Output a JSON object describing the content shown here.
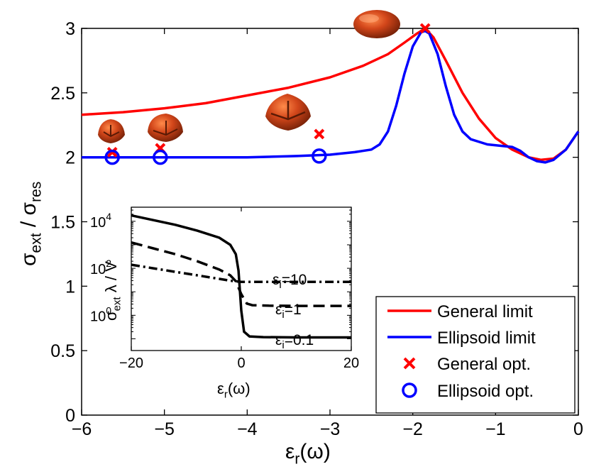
{
  "chart_data": {
    "type": "line",
    "xlabel": "ε_r(ω)",
    "ylabel": "σ_ext / σ_res",
    "xlim": [
      -6,
      0
    ],
    "ylim": [
      0,
      3
    ],
    "xticks": [
      -6,
      -5,
      -4,
      -3,
      -2,
      -1,
      0
    ],
    "yticks": [
      0,
      0.5,
      1,
      1.5,
      2,
      2.5,
      3
    ],
    "xtick_labels": [
      "−6",
      "−5",
      "−4",
      "−3",
      "−2",
      "−1",
      "0"
    ],
    "ytick_labels": [
      "0",
      "0.5",
      "1",
      "1.5",
      "2",
      "2.5",
      "3"
    ],
    "series": [
      {
        "name": "General limit",
        "color": "#ff0000",
        "style": "line",
        "points": [
          [
            -6,
            2.33
          ],
          [
            -5.5,
            2.35
          ],
          [
            -5,
            2.38
          ],
          [
            -4.5,
            2.42
          ],
          [
            -4,
            2.48
          ],
          [
            -3.5,
            2.54
          ],
          [
            -3,
            2.62
          ],
          [
            -2.6,
            2.71
          ],
          [
            -2.3,
            2.8
          ],
          [
            -2.1,
            2.89
          ],
          [
            -1.95,
            2.96
          ],
          [
            -1.85,
            3.0
          ],
          [
            -1.75,
            2.93
          ],
          [
            -1.6,
            2.75
          ],
          [
            -1.4,
            2.5
          ],
          [
            -1.2,
            2.3
          ],
          [
            -1.0,
            2.15
          ],
          [
            -0.8,
            2.06
          ],
          [
            -0.6,
            2.0
          ],
          [
            -0.45,
            1.98
          ],
          [
            -0.3,
            1.99
          ],
          [
            -0.15,
            2.06
          ],
          [
            0,
            2.2
          ]
        ]
      },
      {
        "name": "Ellipsoid limit",
        "color": "#0000ff",
        "style": "line",
        "points": [
          [
            -6,
            2.0
          ],
          [
            -5,
            2.0
          ],
          [
            -4,
            2.0
          ],
          [
            -3.4,
            2.01
          ],
          [
            -3.0,
            2.02
          ],
          [
            -2.7,
            2.04
          ],
          [
            -2.5,
            2.06
          ],
          [
            -2.4,
            2.1
          ],
          [
            -2.3,
            2.2
          ],
          [
            -2.2,
            2.4
          ],
          [
            -2.1,
            2.65
          ],
          [
            -2.0,
            2.86
          ],
          [
            -1.9,
            2.97
          ],
          [
            -1.85,
            2.98
          ],
          [
            -1.8,
            2.96
          ],
          [
            -1.7,
            2.8
          ],
          [
            -1.6,
            2.55
          ],
          [
            -1.5,
            2.33
          ],
          [
            -1.4,
            2.2
          ],
          [
            -1.3,
            2.14
          ],
          [
            -1.1,
            2.1
          ],
          [
            -0.8,
            2.08
          ],
          [
            -0.7,
            2.05
          ],
          [
            -0.6,
            2.0
          ],
          [
            -0.5,
            1.97
          ],
          [
            -0.4,
            1.96
          ],
          [
            -0.3,
            1.98
          ],
          [
            -0.15,
            2.06
          ],
          [
            0,
            2.2
          ]
        ]
      },
      {
        "name": "General opt.",
        "color": "#ff0000",
        "style": "marker-x",
        "points": [
          [
            -5.63,
            2.04
          ],
          [
            -5.05,
            2.07
          ],
          [
            -3.13,
            2.18
          ],
          [
            -1.85,
            3.0
          ]
        ]
      },
      {
        "name": "Ellipsoid opt.",
        "color": "#0000ff",
        "style": "marker-o",
        "points": [
          [
            -5.63,
            2.0
          ],
          [
            -5.05,
            2.0
          ],
          [
            -3.13,
            2.01
          ]
        ]
      }
    ],
    "legend": {
      "position": "bottom-right",
      "entries": [
        "General limit",
        "Ellipsoid limit",
        "General opt.",
        "Ellipsoid opt."
      ]
    },
    "inset": {
      "type": "line",
      "xlabel": "ε_r(ω)",
      "ylabel": "σ_ext λ / V",
      "xlim": [
        -20,
        20
      ],
      "ylim_log10": [
        -1.5,
        4.6
      ],
      "yscale": "log",
      "xticks": [
        -20,
        0,
        20
      ],
      "xtick_labels": [
        "−20",
        "0",
        "20"
      ],
      "yticks_exp": [
        0,
        2,
        4
      ],
      "ytick_base": "10",
      "series": [
        {
          "name": "ε_i=0.1",
          "label_main": "ε",
          "label_sub": "i",
          "label_rest": "=0.1",
          "dash": "solid",
          "points": [
            [
              -20,
              4.25
            ],
            [
              -16,
              4.05
            ],
            [
              -12,
              3.85
            ],
            [
              -8,
              3.6
            ],
            [
              -4,
              3.3
            ],
            [
              -2,
              3.0
            ],
            [
              -1,
              2.6
            ],
            [
              -0.5,
              1.9
            ],
            [
              0,
              0.2
            ],
            [
              0.5,
              -0.7
            ],
            [
              1.5,
              -0.9
            ],
            [
              4,
              -0.93
            ],
            [
              10,
              -0.94
            ],
            [
              20,
              -0.94
            ]
          ]
        },
        {
          "name": "ε_i=1",
          "label_main": "ε",
          "label_sub": "i",
          "label_rest": "=1",
          "dash": "16,8",
          "points": [
            [
              -20,
              3.1
            ],
            [
              -16,
              2.85
            ],
            [
              -12,
              2.6
            ],
            [
              -8,
              2.3
            ],
            [
              -4,
              1.95
            ],
            [
              -2,
              1.7
            ],
            [
              -1,
              1.45
            ],
            [
              0,
              0.9
            ],
            [
              1,
              0.5
            ],
            [
              2,
              0.43
            ],
            [
              5,
              0.41
            ],
            [
              10,
              0.4
            ],
            [
              20,
              0.4
            ]
          ]
        },
        {
          "name": "ε_i=10",
          "label_main": "ε",
          "label_sub": "i",
          "label_rest": "=10",
          "dash": "12,5,3,5",
          "points": [
            [
              -20,
              2.15
            ],
            [
              -16,
              2.0
            ],
            [
              -12,
              1.85
            ],
            [
              -8,
              1.7
            ],
            [
              -4,
              1.55
            ],
            [
              -2,
              1.47
            ],
            [
              0,
              1.42
            ],
            [
              5,
              1.42
            ],
            [
              10,
              1.42
            ],
            [
              20,
              1.42
            ]
          ]
        }
      ]
    }
  }
}
